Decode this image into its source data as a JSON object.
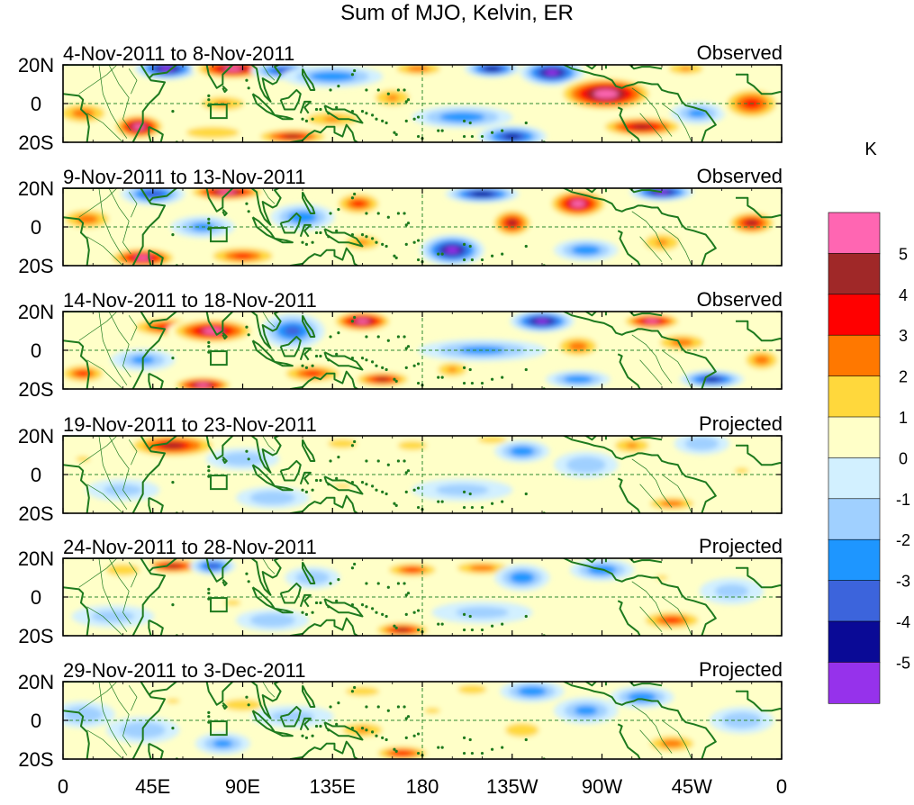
{
  "chart_data": {
    "type": "heatmap",
    "title": "Sum of MJO, Kelvin, ER",
    "units": "K",
    "x_ticks": [
      "0",
      "45E",
      "90E",
      "135E",
      "180",
      "135W",
      "90W",
      "45W",
      "0"
    ],
    "y_ticks": [
      "20N",
      "0",
      "20S"
    ],
    "lat_range": [
      -20,
      20
    ],
    "lon_range": [
      0,
      360
    ],
    "colorbar": {
      "levels": [
        "5",
        "4",
        "3",
        "2",
        "1",
        "0",
        "-1",
        "-2",
        "-3",
        "-4",
        "-5"
      ],
      "colors": [
        "#ff66b2",
        "#a02828",
        "#ff0000",
        "#ff7800",
        "#ffd83c",
        "#ffffc8",
        "#d2f0ff",
        "#a0d0ff",
        "#1e96ff",
        "#3c64dc",
        "#0a0a96",
        "#9632eb"
      ]
    },
    "panels": [
      {
        "period": "4-Nov-2011 to 8-Nov-2011",
        "status": "Observed",
        "features": [
          {
            "lon": 38,
            "lat": -12,
            "val": 5.5,
            "sx": 12,
            "sy": 6
          },
          {
            "lon": 10,
            "lat": -5,
            "val": 2.5,
            "sx": 14,
            "sy": 6
          },
          {
            "lon": 52,
            "lat": 18,
            "val": -5.5,
            "sx": 14,
            "sy": 5
          },
          {
            "lon": 85,
            "lat": 18,
            "val": 5.5,
            "sx": 18,
            "sy": 5
          },
          {
            "lon": 80,
            "lat": 0,
            "val": 2.0,
            "sx": 15,
            "sy": 5
          },
          {
            "lon": 75,
            "lat": -15,
            "val": 1.5,
            "sx": 22,
            "sy": 5
          },
          {
            "lon": 110,
            "lat": 17,
            "val": -4.0,
            "sx": 14,
            "sy": 4
          },
          {
            "lon": 135,
            "lat": 14,
            "val": -3.0,
            "sx": 22,
            "sy": 5
          },
          {
            "lon": 135,
            "lat": -8,
            "val": 2.0,
            "sx": 18,
            "sy": 5
          },
          {
            "lon": 115,
            "lat": -17,
            "val": 4.0,
            "sx": 18,
            "sy": 4
          },
          {
            "lon": 165,
            "lat": 3,
            "val": 2.0,
            "sx": 12,
            "sy": 6
          },
          {
            "lon": 178,
            "lat": 18,
            "val": 2.5,
            "sx": 14,
            "sy": 4
          },
          {
            "lon": 215,
            "lat": 18,
            "val": -5.0,
            "sx": 12,
            "sy": 4
          },
          {
            "lon": 200,
            "lat": -7,
            "val": -3.0,
            "sx": 22,
            "sy": 5
          },
          {
            "lon": 225,
            "lat": -17,
            "val": -4.5,
            "sx": 15,
            "sy": 5
          },
          {
            "lon": 245,
            "lat": 16,
            "val": -5.5,
            "sx": 14,
            "sy": 6
          },
          {
            "lon": 272,
            "lat": 5,
            "val": 6.0,
            "sx": 22,
            "sy": 8
          },
          {
            "lon": 290,
            "lat": -12,
            "val": 4.5,
            "sx": 20,
            "sy": 5
          },
          {
            "lon": 312,
            "lat": 18,
            "val": 2.0,
            "sx": 12,
            "sy": 4
          },
          {
            "lon": 318,
            "lat": -5,
            "val": -2.5,
            "sx": 12,
            "sy": 5
          },
          {
            "lon": 345,
            "lat": 0,
            "val": 3.5,
            "sx": 14,
            "sy": 8
          }
        ]
      },
      {
        "period": "9-Nov-2011 to 13-Nov-2011",
        "status": "Observed",
        "features": [
          {
            "lon": 40,
            "lat": -16,
            "val": 5.0,
            "sx": 16,
            "sy": 5
          },
          {
            "lon": 12,
            "lat": 4,
            "val": 2.5,
            "sx": 14,
            "sy": 6
          },
          {
            "lon": 45,
            "lat": 17,
            "val": -4.0,
            "sx": 14,
            "sy": 5
          },
          {
            "lon": 82,
            "lat": 18,
            "val": 5.5,
            "sx": 18,
            "sy": 4
          },
          {
            "lon": 70,
            "lat": 0,
            "val": -2.5,
            "sx": 14,
            "sy": 5
          },
          {
            "lon": 90,
            "lat": -15,
            "val": 3.0,
            "sx": 18,
            "sy": 5
          },
          {
            "lon": 120,
            "lat": 5,
            "val": -3.0,
            "sx": 14,
            "sy": 6
          },
          {
            "lon": 148,
            "lat": 12,
            "val": 3.0,
            "sx": 12,
            "sy": 6
          },
          {
            "lon": 150,
            "lat": -8,
            "val": 2.0,
            "sx": 12,
            "sy": 5
          },
          {
            "lon": 195,
            "lat": -12,
            "val": -5.5,
            "sx": 14,
            "sy": 7
          },
          {
            "lon": 210,
            "lat": 17,
            "val": -5.0,
            "sx": 16,
            "sy": 4
          },
          {
            "lon": 225,
            "lat": 2,
            "val": 4.0,
            "sx": 10,
            "sy": 7
          },
          {
            "lon": 258,
            "lat": 12,
            "val": 5.0,
            "sx": 14,
            "sy": 7
          },
          {
            "lon": 262,
            "lat": -12,
            "val": -3.0,
            "sx": 14,
            "sy": 5
          },
          {
            "lon": 300,
            "lat": 18,
            "val": -5.5,
            "sx": 14,
            "sy": 4
          },
          {
            "lon": 300,
            "lat": -8,
            "val": 2.0,
            "sx": 12,
            "sy": 6
          },
          {
            "lon": 345,
            "lat": 2,
            "val": 4.0,
            "sx": 12,
            "sy": 6
          }
        ]
      },
      {
        "period": "14-Nov-2011 to 18-Nov-2011",
        "status": "Observed",
        "features": [
          {
            "lon": 52,
            "lat": 12,
            "val": 3.5,
            "sx": 18,
            "sy": 5
          },
          {
            "lon": 75,
            "lat": 10,
            "val": 5.0,
            "sx": 20,
            "sy": 6
          },
          {
            "lon": 40,
            "lat": -5,
            "val": -2.5,
            "sx": 14,
            "sy": 5
          },
          {
            "lon": 10,
            "lat": -12,
            "val": 3.0,
            "sx": 12,
            "sy": 5
          },
          {
            "lon": 70,
            "lat": -18,
            "val": 5.5,
            "sx": 14,
            "sy": 4
          },
          {
            "lon": 115,
            "lat": 10,
            "val": -3.5,
            "sx": 14,
            "sy": 8
          },
          {
            "lon": 125,
            "lat": -12,
            "val": 3.0,
            "sx": 16,
            "sy": 5
          },
          {
            "lon": 150,
            "lat": 15,
            "val": 5.5,
            "sx": 14,
            "sy": 5
          },
          {
            "lon": 160,
            "lat": -15,
            "val": 4.0,
            "sx": 14,
            "sy": 4
          },
          {
            "lon": 195,
            "lat": -10,
            "val": 2.0,
            "sx": 10,
            "sy": 5
          },
          {
            "lon": 210,
            "lat": 0,
            "val": -2.5,
            "sx": 28,
            "sy": 5
          },
          {
            "lon": 240,
            "lat": 15,
            "val": -5.5,
            "sx": 14,
            "sy": 5
          },
          {
            "lon": 258,
            "lat": 2,
            "val": 2.5,
            "sx": 12,
            "sy": 6
          },
          {
            "lon": 258,
            "lat": -15,
            "val": -3.0,
            "sx": 14,
            "sy": 4
          },
          {
            "lon": 295,
            "lat": 15,
            "val": 5.0,
            "sx": 14,
            "sy": 4
          },
          {
            "lon": 310,
            "lat": 4,
            "val": 2.5,
            "sx": 14,
            "sy": 5
          },
          {
            "lon": 325,
            "lat": -15,
            "val": -4.5,
            "sx": 14,
            "sy": 4
          },
          {
            "lon": 350,
            "lat": -5,
            "val": 2.5,
            "sx": 10,
            "sy": 6
          }
        ]
      },
      {
        "period": "19-Nov-2011 to 23-Nov-2011",
        "status": "Projected",
        "features": [
          {
            "lon": 55,
            "lat": 15,
            "val": 4.0,
            "sx": 22,
            "sy": 6
          },
          {
            "lon": 10,
            "lat": 8,
            "val": 1.0,
            "sx": 14,
            "sy": 6
          },
          {
            "lon": 30,
            "lat": -8,
            "val": -1.5,
            "sx": 16,
            "sy": 5
          },
          {
            "lon": 90,
            "lat": 8,
            "val": -2.0,
            "sx": 16,
            "sy": 5
          },
          {
            "lon": 105,
            "lat": -12,
            "val": -2.0,
            "sx": 16,
            "sy": 5
          },
          {
            "lon": 140,
            "lat": 16,
            "val": 1.5,
            "sx": 12,
            "sy": 4
          },
          {
            "lon": 140,
            "lat": -6,
            "val": 1.0,
            "sx": 18,
            "sy": 5
          },
          {
            "lon": 175,
            "lat": 15,
            "val": 1.5,
            "sx": 12,
            "sy": 4
          },
          {
            "lon": 215,
            "lat": 18,
            "val": 1.5,
            "sx": 12,
            "sy": 3
          },
          {
            "lon": 200,
            "lat": -8,
            "val": -1.5,
            "sx": 22,
            "sy": 5
          },
          {
            "lon": 230,
            "lat": 12,
            "val": -3.0,
            "sx": 12,
            "sy": 5
          },
          {
            "lon": 262,
            "lat": 5,
            "val": -2.0,
            "sx": 14,
            "sy": 6
          },
          {
            "lon": 285,
            "lat": 15,
            "val": 2.0,
            "sx": 12,
            "sy": 5
          },
          {
            "lon": 305,
            "lat": -15,
            "val": 2.5,
            "sx": 14,
            "sy": 4
          },
          {
            "lon": 320,
            "lat": 16,
            "val": -2.0,
            "sx": 12,
            "sy": 5
          },
          {
            "lon": 340,
            "lat": 2,
            "val": 1.0,
            "sx": 14,
            "sy": 6
          }
        ]
      },
      {
        "period": "24-Nov-2011 to 28-Nov-2011",
        "status": "Projected",
        "features": [
          {
            "lon": 55,
            "lat": 16,
            "val": 4.0,
            "sx": 16,
            "sy": 4
          },
          {
            "lon": 30,
            "lat": 14,
            "val": 1.5,
            "sx": 14,
            "sy": 5
          },
          {
            "lon": 75,
            "lat": 16,
            "val": -4.0,
            "sx": 10,
            "sy": 4
          },
          {
            "lon": 25,
            "lat": -10,
            "val": -1.5,
            "sx": 18,
            "sy": 5
          },
          {
            "lon": 85,
            "lat": -3,
            "val": 1.0,
            "sx": 16,
            "sy": 6
          },
          {
            "lon": 105,
            "lat": -12,
            "val": -2.0,
            "sx": 16,
            "sy": 5
          },
          {
            "lon": 125,
            "lat": 10,
            "val": -2.0,
            "sx": 12,
            "sy": 5
          },
          {
            "lon": 170,
            "lat": -17,
            "val": 4.0,
            "sx": 14,
            "sy": 4
          },
          {
            "lon": 175,
            "lat": 14,
            "val": 3.0,
            "sx": 14,
            "sy": 4
          },
          {
            "lon": 210,
            "lat": 15,
            "val": 2.5,
            "sx": 16,
            "sy": 4
          },
          {
            "lon": 230,
            "lat": 10,
            "val": -3.0,
            "sx": 12,
            "sy": 6
          },
          {
            "lon": 210,
            "lat": -8,
            "val": -1.5,
            "sx": 22,
            "sy": 5
          },
          {
            "lon": 270,
            "lat": 14,
            "val": -3.0,
            "sx": 14,
            "sy": 5
          },
          {
            "lon": 305,
            "lat": -12,
            "val": 3.0,
            "sx": 16,
            "sy": 5
          },
          {
            "lon": 300,
            "lat": 10,
            "val": 1.0,
            "sx": 12,
            "sy": 5
          },
          {
            "lon": 335,
            "lat": 3,
            "val": -1.5,
            "sx": 14,
            "sy": 6
          }
        ]
      },
      {
        "period": "29-Nov-2011 to 3-Dec-2011",
        "status": "Projected",
        "features": [
          {
            "lon": 10,
            "lat": 3,
            "val": -2.0,
            "sx": 14,
            "sy": 6
          },
          {
            "lon": 40,
            "lat": -5,
            "val": -2.0,
            "sx": 16,
            "sy": 6
          },
          {
            "lon": 55,
            "lat": 10,
            "val": 1.0,
            "sx": 14,
            "sy": 5
          },
          {
            "lon": 90,
            "lat": 8,
            "val": 1.5,
            "sx": 16,
            "sy": 5
          },
          {
            "lon": 80,
            "lat": -12,
            "val": -2.5,
            "sx": 12,
            "sy": 5
          },
          {
            "lon": 115,
            "lat": 2,
            "val": -1.5,
            "sx": 18,
            "sy": 5
          },
          {
            "lon": 150,
            "lat": -5,
            "val": 2.0,
            "sx": 14,
            "sy": 5
          },
          {
            "lon": 150,
            "lat": 15,
            "val": 1.5,
            "sx": 14,
            "sy": 4
          },
          {
            "lon": 170,
            "lat": -17,
            "val": 3.5,
            "sx": 14,
            "sy": 4
          },
          {
            "lon": 185,
            "lat": 5,
            "val": 1.0,
            "sx": 16,
            "sy": 6
          },
          {
            "lon": 205,
            "lat": 16,
            "val": 1.5,
            "sx": 12,
            "sy": 4
          },
          {
            "lon": 230,
            "lat": -5,
            "val": 1.5,
            "sx": 14,
            "sy": 6
          },
          {
            "lon": 235,
            "lat": 15,
            "val": -3.0,
            "sx": 14,
            "sy": 5
          },
          {
            "lon": 262,
            "lat": 5,
            "val": -2.5,
            "sx": 14,
            "sy": 6
          },
          {
            "lon": 290,
            "lat": 12,
            "val": -3.0,
            "sx": 14,
            "sy": 5
          },
          {
            "lon": 305,
            "lat": -12,
            "val": 2.5,
            "sx": 14,
            "sy": 5
          },
          {
            "lon": 340,
            "lat": 0,
            "val": -2.0,
            "sx": 14,
            "sy": 6
          }
        ]
      }
    ]
  }
}
